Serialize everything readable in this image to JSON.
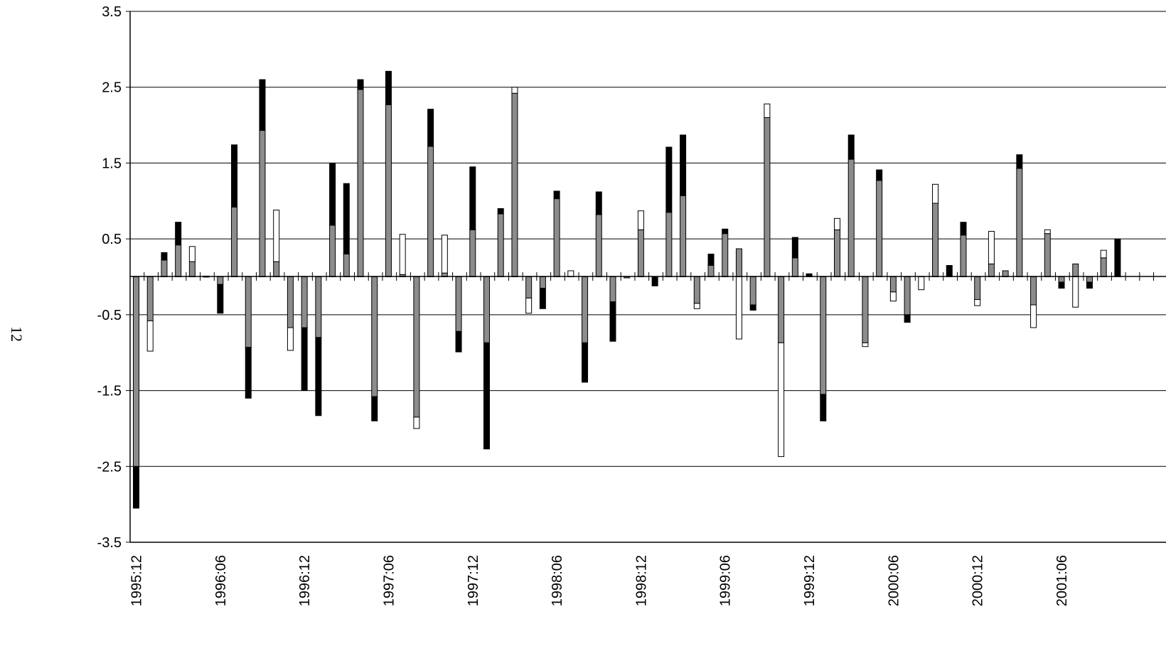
{
  "page_number": "12",
  "colors": {
    "gray": "#8c8c8c",
    "black": "#000000",
    "white": "#ffffff",
    "grid": "#000000"
  },
  "chart_data": {
    "type": "bar",
    "subtype": "stacked",
    "title": "",
    "xlabel": "",
    "ylabel": "",
    "ylim": [
      -3.5,
      3.5
    ],
    "yticks": [
      "3.5",
      "2.5",
      "1.5",
      "0.5",
      "-0.5",
      "-1.5",
      "-2.5",
      "-3.5"
    ],
    "ytick_values": [
      3.5,
      2.5,
      1.5,
      0.5,
      -0.5,
      -1.5,
      -2.5,
      -3.5
    ],
    "gridlines": true,
    "x_start": "1995:12",
    "xticks": [
      "1995:12",
      "1996:06",
      "1996:12",
      "1997:06",
      "1997:12",
      "1998:06",
      "1998:12",
      "1999:06",
      "1999:12",
      "2000:06",
      "2000:12",
      "2001:06"
    ],
    "xtick_index": [
      0,
      6,
      12,
      18,
      24,
      30,
      36,
      42,
      48,
      54,
      60,
      66
    ],
    "bars": [
      {
        "x": "1995:12",
        "gray": -2.5,
        "black": -0.55,
        "white": 0
      },
      {
        "x": "1996:01",
        "gray": -0.58,
        "black": 0,
        "white": -0.4
      },
      {
        "x": "1996:02",
        "gray": 0.22,
        "black": 0.1,
        "white": 0
      },
      {
        "x": "1996:03",
        "gray": 0.42,
        "black": 0.3,
        "white": 0
      },
      {
        "x": "1996:04",
        "gray": 0.2,
        "black": 0,
        "white": 0.2
      },
      {
        "x": "1996:05",
        "gray": 0,
        "black": 0.01,
        "white": 0
      },
      {
        "x": "1996:06",
        "gray": -0.1,
        "black": -0.38,
        "white": 0
      },
      {
        "x": "1996:07",
        "gray": 0.92,
        "black": 0.82,
        "white": 0
      },
      {
        "x": "1996:08",
        "gray": -0.93,
        "black": -0.67,
        "white": 0
      },
      {
        "x": "1996:09",
        "gray": 1.93,
        "black": 0.67,
        "white": 0
      },
      {
        "x": "1996:10",
        "gray": 0.2,
        "black": 0,
        "white": 0.68
      },
      {
        "x": "1996:11",
        "gray": -0.67,
        "black": 0,
        "white": -0.3
      },
      {
        "x": "1996:12",
        "gray": -0.67,
        "black": -0.83,
        "white": 0
      },
      {
        "x": "1997:01",
        "gray": -0.8,
        "black": -1.03,
        "white": 0
      },
      {
        "x": "1997:02",
        "gray": 0.68,
        "black": 0.82,
        "white": 0
      },
      {
        "x": "1997:03",
        "gray": 0.3,
        "black": 0.93,
        "white": 0
      },
      {
        "x": "1997:04",
        "gray": 2.47,
        "black": 0.13,
        "white": 0
      },
      {
        "x": "1997:05",
        "gray": -1.58,
        "black": -0.32,
        "white": 0
      },
      {
        "x": "1997:06",
        "gray": 2.27,
        "black": 0.44,
        "white": 0
      },
      {
        "x": "1997:07",
        "gray": 0.03,
        "black": 0,
        "white": 0.53
      },
      {
        "x": "1997:08",
        "gray": -1.85,
        "black": 0,
        "white": -0.15
      },
      {
        "x": "1997:09",
        "gray": 1.72,
        "black": 0.49,
        "white": 0
      },
      {
        "x": "1997:10",
        "gray": 0.05,
        "black": 0,
        "white": 0.5
      },
      {
        "x": "1997:11",
        "gray": -0.72,
        "black": -0.27,
        "white": 0
      },
      {
        "x": "1997:12",
        "gray": 0.62,
        "black": 0.83,
        "white": 0
      },
      {
        "x": "1998:01",
        "gray": -0.87,
        "black": -1.4,
        "white": 0
      },
      {
        "x": "1998:02",
        "gray": 0.83,
        "black": 0.07,
        "white": 0
      },
      {
        "x": "1998:03",
        "gray": 2.42,
        "black": 0,
        "white": 0.08
      },
      {
        "x": "1998:04",
        "gray": -0.28,
        "black": 0,
        "white": -0.2
      },
      {
        "x": "1998:05",
        "gray": -0.15,
        "black": -0.27,
        "white": 0
      },
      {
        "x": "1998:06",
        "gray": 1.03,
        "black": 0.1,
        "white": 0
      },
      {
        "x": "1998:07",
        "gray": 0,
        "black": 0,
        "white": 0.08
      },
      {
        "x": "1998:08",
        "gray": -0.87,
        "black": -0.52,
        "white": 0
      },
      {
        "x": "1998:09",
        "gray": 0.82,
        "black": 0.3,
        "white": 0
      },
      {
        "x": "1998:10",
        "gray": -0.33,
        "black": -0.52,
        "white": 0
      },
      {
        "x": "1998:11",
        "gray": -0.01,
        "black": 0,
        "white": 0
      },
      {
        "x": "1998:12",
        "gray": 0.62,
        "black": 0,
        "white": 0.25
      },
      {
        "x": "1999:01",
        "gray": 0,
        "black": -0.12,
        "white": 0
      },
      {
        "x": "1999:02",
        "gray": 0.85,
        "black": 0.86,
        "white": 0
      },
      {
        "x": "1999:03",
        "gray": 1.07,
        "black": 0.8,
        "white": 0
      },
      {
        "x": "1999:04",
        "gray": -0.35,
        "black": 0,
        "white": -0.07
      },
      {
        "x": "1999:05",
        "gray": 0.15,
        "black": 0.15,
        "white": 0
      },
      {
        "x": "1999:06",
        "gray": 0.57,
        "black": 0.06,
        "white": 0
      },
      {
        "x": "1999:07",
        "gray": 0.37,
        "black": 0,
        "white": -0.82
      },
      {
        "x": "1999:08",
        "gray": -0.37,
        "black": -0.07,
        "white": 0
      },
      {
        "x": "1999:09",
        "gray": 2.1,
        "black": 0,
        "white": 0.18
      },
      {
        "x": "1999:10",
        "gray": -0.87,
        "black": 0,
        "white": -1.5
      },
      {
        "x": "1999:11",
        "gray": 0.25,
        "black": 0.27,
        "white": 0
      },
      {
        "x": "1999:12",
        "gray": 0,
        "black": 0.04,
        "white": 0
      },
      {
        "x": "2000:01",
        "gray": -1.55,
        "black": -0.35,
        "white": 0
      },
      {
        "x": "2000:02",
        "gray": 0.62,
        "black": 0,
        "white": 0.15
      },
      {
        "x": "2000:03",
        "gray": 1.55,
        "black": 0.32,
        "white": 0
      },
      {
        "x": "2000:04",
        "gray": -0.87,
        "black": 0,
        "white": -0.05
      },
      {
        "x": "2000:05",
        "gray": 1.27,
        "black": 0.14,
        "white": 0
      },
      {
        "x": "2000:06",
        "gray": -0.2,
        "black": 0,
        "white": -0.12
      },
      {
        "x": "2000:07",
        "gray": -0.5,
        "black": -0.1,
        "white": 0
      },
      {
        "x": "2000:08",
        "gray": 0,
        "black": 0,
        "white": -0.17
      },
      {
        "x": "2000:09",
        "gray": 0.97,
        "black": 0,
        "white": 0.25
      },
      {
        "x": "2000:10",
        "gray": 0,
        "black": 0.15,
        "white": 0
      },
      {
        "x": "2000:11",
        "gray": 0.55,
        "black": 0.17,
        "white": 0
      },
      {
        "x": "2000:12",
        "gray": -0.3,
        "black": 0,
        "white": -0.08
      },
      {
        "x": "2001:01",
        "gray": 0.17,
        "black": 0,
        "white": 0.43
      },
      {
        "x": "2001:02",
        "gray": 0.08,
        "black": 0,
        "white": 0
      },
      {
        "x": "2001:03",
        "gray": 1.43,
        "black": 0.18,
        "white": 0
      },
      {
        "x": "2001:04",
        "gray": -0.37,
        "black": 0,
        "white": -0.3
      },
      {
        "x": "2001:05",
        "gray": 0.57,
        "black": 0,
        "white": 0.05
      },
      {
        "x": "2001:06",
        "gray": -0.07,
        "black": -0.08,
        "white": 0
      },
      {
        "x": "2001:07",
        "gray": 0.17,
        "black": 0,
        "white": -0.4
      },
      {
        "x": "2001:08",
        "gray": -0.07,
        "black": -0.08,
        "white": 0
      },
      {
        "x": "2001:09",
        "gray": 0.25,
        "black": 0,
        "white": 0.1
      },
      {
        "x": "2001:10",
        "gray": 0,
        "black": 0.5,
        "white": 0
      }
    ]
  }
}
